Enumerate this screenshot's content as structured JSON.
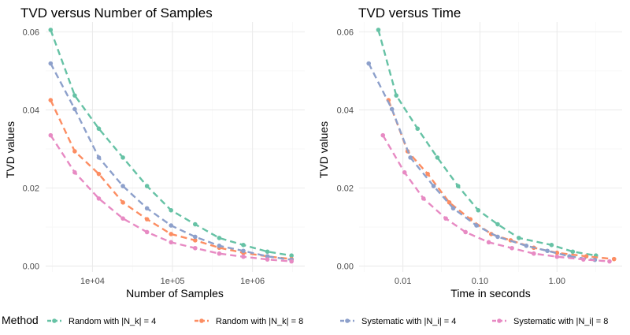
{
  "legend": {
    "title": "Method",
    "position": "bottom"
  },
  "chart_data": [
    {
      "type": "line",
      "title": "TVD versus Number of Samples",
      "xlabel": "Number of Samples",
      "ylabel": "TVD values",
      "xscale": "log10",
      "xlim": [
        2600,
        4500000
      ],
      "ylim": [
        -0.0015,
        0.0625
      ],
      "xticks": [
        10000,
        100000,
        1000000
      ],
      "xtick_labels": [
        "1e+04",
        "1e+05",
        "1e+06"
      ],
      "yticks": [
        0,
        0.02,
        0.04,
        0.06
      ],
      "ytick_labels": [
        "0.00",
        "0.02",
        "0.04",
        "0.06"
      ],
      "series": [
        {
          "name": "Random with |N_k| = 4",
          "color": "#66c2a5",
          "x": [
            3000,
            6000,
            12000,
            24000,
            48000,
            96000,
            192000,
            384000,
            768000,
            1536000,
            3072000
          ],
          "y": [
            0.0605,
            0.0437,
            0.0352,
            0.0278,
            0.0205,
            0.0143,
            0.0107,
            0.0072,
            0.0054,
            0.0037,
            0.0027
          ]
        },
        {
          "name": "Random with |N_k| = 8",
          "color": "#fc8d62",
          "x": [
            3000,
            6000,
            12000,
            24000,
            48000,
            96000,
            192000,
            384000,
            768000,
            1536000,
            3072000
          ],
          "y": [
            0.0425,
            0.0294,
            0.0236,
            0.0163,
            0.012,
            0.0082,
            0.0066,
            0.0047,
            0.0034,
            0.0025,
            0.0018
          ]
        },
        {
          "name": "Systematic with |N_i| = 4",
          "color": "#8da0cb",
          "x": [
            3000,
            6000,
            12000,
            24000,
            48000,
            96000,
            192000,
            384000,
            768000,
            1536000,
            3072000
          ],
          "y": [
            0.0519,
            0.0402,
            0.0278,
            0.0205,
            0.0148,
            0.0104,
            0.0075,
            0.0052,
            0.0039,
            0.0025,
            0.0016
          ]
        },
        {
          "name": "Systematic with |N_i| = 8",
          "color": "#e78ac3",
          "x": [
            3000,
            6000,
            12000,
            24000,
            48000,
            96000,
            192000,
            384000,
            768000,
            1536000,
            3072000
          ],
          "y": [
            0.0335,
            0.024,
            0.0173,
            0.0122,
            0.0087,
            0.0061,
            0.0046,
            0.0032,
            0.0024,
            0.0017,
            0.0012
          ]
        }
      ]
    },
    {
      "type": "line",
      "title": "TVD versus Time",
      "xlabel": "Time in seconds",
      "ylabel": "TVD values",
      "xscale": "log10",
      "xlim": [
        0.0027,
        7.0
      ],
      "ylim": [
        -0.0015,
        0.0625
      ],
      "xticks": [
        0.01,
        0.1,
        1
      ],
      "xtick_labels": [
        "0.01",
        "0.10",
        "1.00"
      ],
      "yticks": [
        0,
        0.02,
        0.04,
        0.06
      ],
      "ytick_labels": [
        "0.00",
        "0.02",
        "0.04",
        "0.06"
      ],
      "series": [
        {
          "name": "Random with |N_k| = 4",
          "color": "#66c2a5",
          "x": [
            0.0048,
            0.0082,
            0.0155,
            0.028,
            0.052,
            0.095,
            0.17,
            0.32,
            0.85,
            1.6,
            3.2
          ],
          "y": [
            0.0605,
            0.0437,
            0.0352,
            0.0278,
            0.0205,
            0.0143,
            0.0107,
            0.0072,
            0.0054,
            0.0037,
            0.0027
          ]
        },
        {
          "name": "Random with |N_k| = 8",
          "color": "#fc8d62",
          "x": [
            0.0065,
            0.0115,
            0.021,
            0.04,
            0.075,
            0.14,
            0.25,
            0.5,
            1.0,
            2.4,
            5.5
          ],
          "y": [
            0.0425,
            0.0294,
            0.0236,
            0.0163,
            0.012,
            0.0082,
            0.0066,
            0.0047,
            0.0034,
            0.0025,
            0.0018
          ]
        },
        {
          "name": "Systematic with |N_i| = 4",
          "color": "#8da0cb",
          "x": [
            0.0036,
            0.0072,
            0.0125,
            0.025,
            0.045,
            0.09,
            0.17,
            0.4,
            0.75,
            1.45,
            3.1
          ],
          "y": [
            0.0519,
            0.0402,
            0.0278,
            0.0205,
            0.0148,
            0.0104,
            0.0075,
            0.0052,
            0.0039,
            0.0025,
            0.0016
          ]
        },
        {
          "name": "Systematic with |N_i| = 8",
          "color": "#e78ac3",
          "x": [
            0.0055,
            0.0105,
            0.0185,
            0.036,
            0.065,
            0.13,
            0.26,
            0.5,
            1.0,
            2.2,
            4.8
          ],
          "y": [
            0.0335,
            0.024,
            0.0173,
            0.0122,
            0.0087,
            0.0061,
            0.0046,
            0.0032,
            0.0024,
            0.0017,
            0.0012
          ]
        }
      ]
    }
  ]
}
